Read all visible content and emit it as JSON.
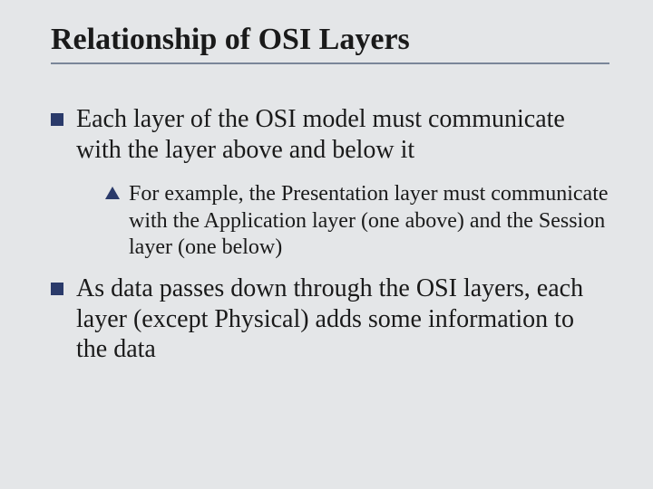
{
  "colors": {
    "background": "#e4e6e8",
    "text": "#1a1a1a",
    "bullet": "#2a3a6a",
    "rule": "#7a8699"
  },
  "typography": {
    "font_family": "Times New Roman",
    "title_fontsize_pt": 26,
    "title_fontweight": "bold",
    "body_fontsize_pt": 21,
    "sub_fontsize_pt": 18
  },
  "title": "Relationship of OSI Layers",
  "bullets": [
    {
      "text": "Each layer of the OSI model must communicate with the layer above and below it",
      "children": [
        {
          "text": "For example, the Presentation layer must communicate with the Application layer (one above) and the Session layer (one below)"
        }
      ]
    },
    {
      "text": "As data passes down through the OSI layers, each layer (except Physical) adds some information to the data",
      "children": []
    }
  ]
}
